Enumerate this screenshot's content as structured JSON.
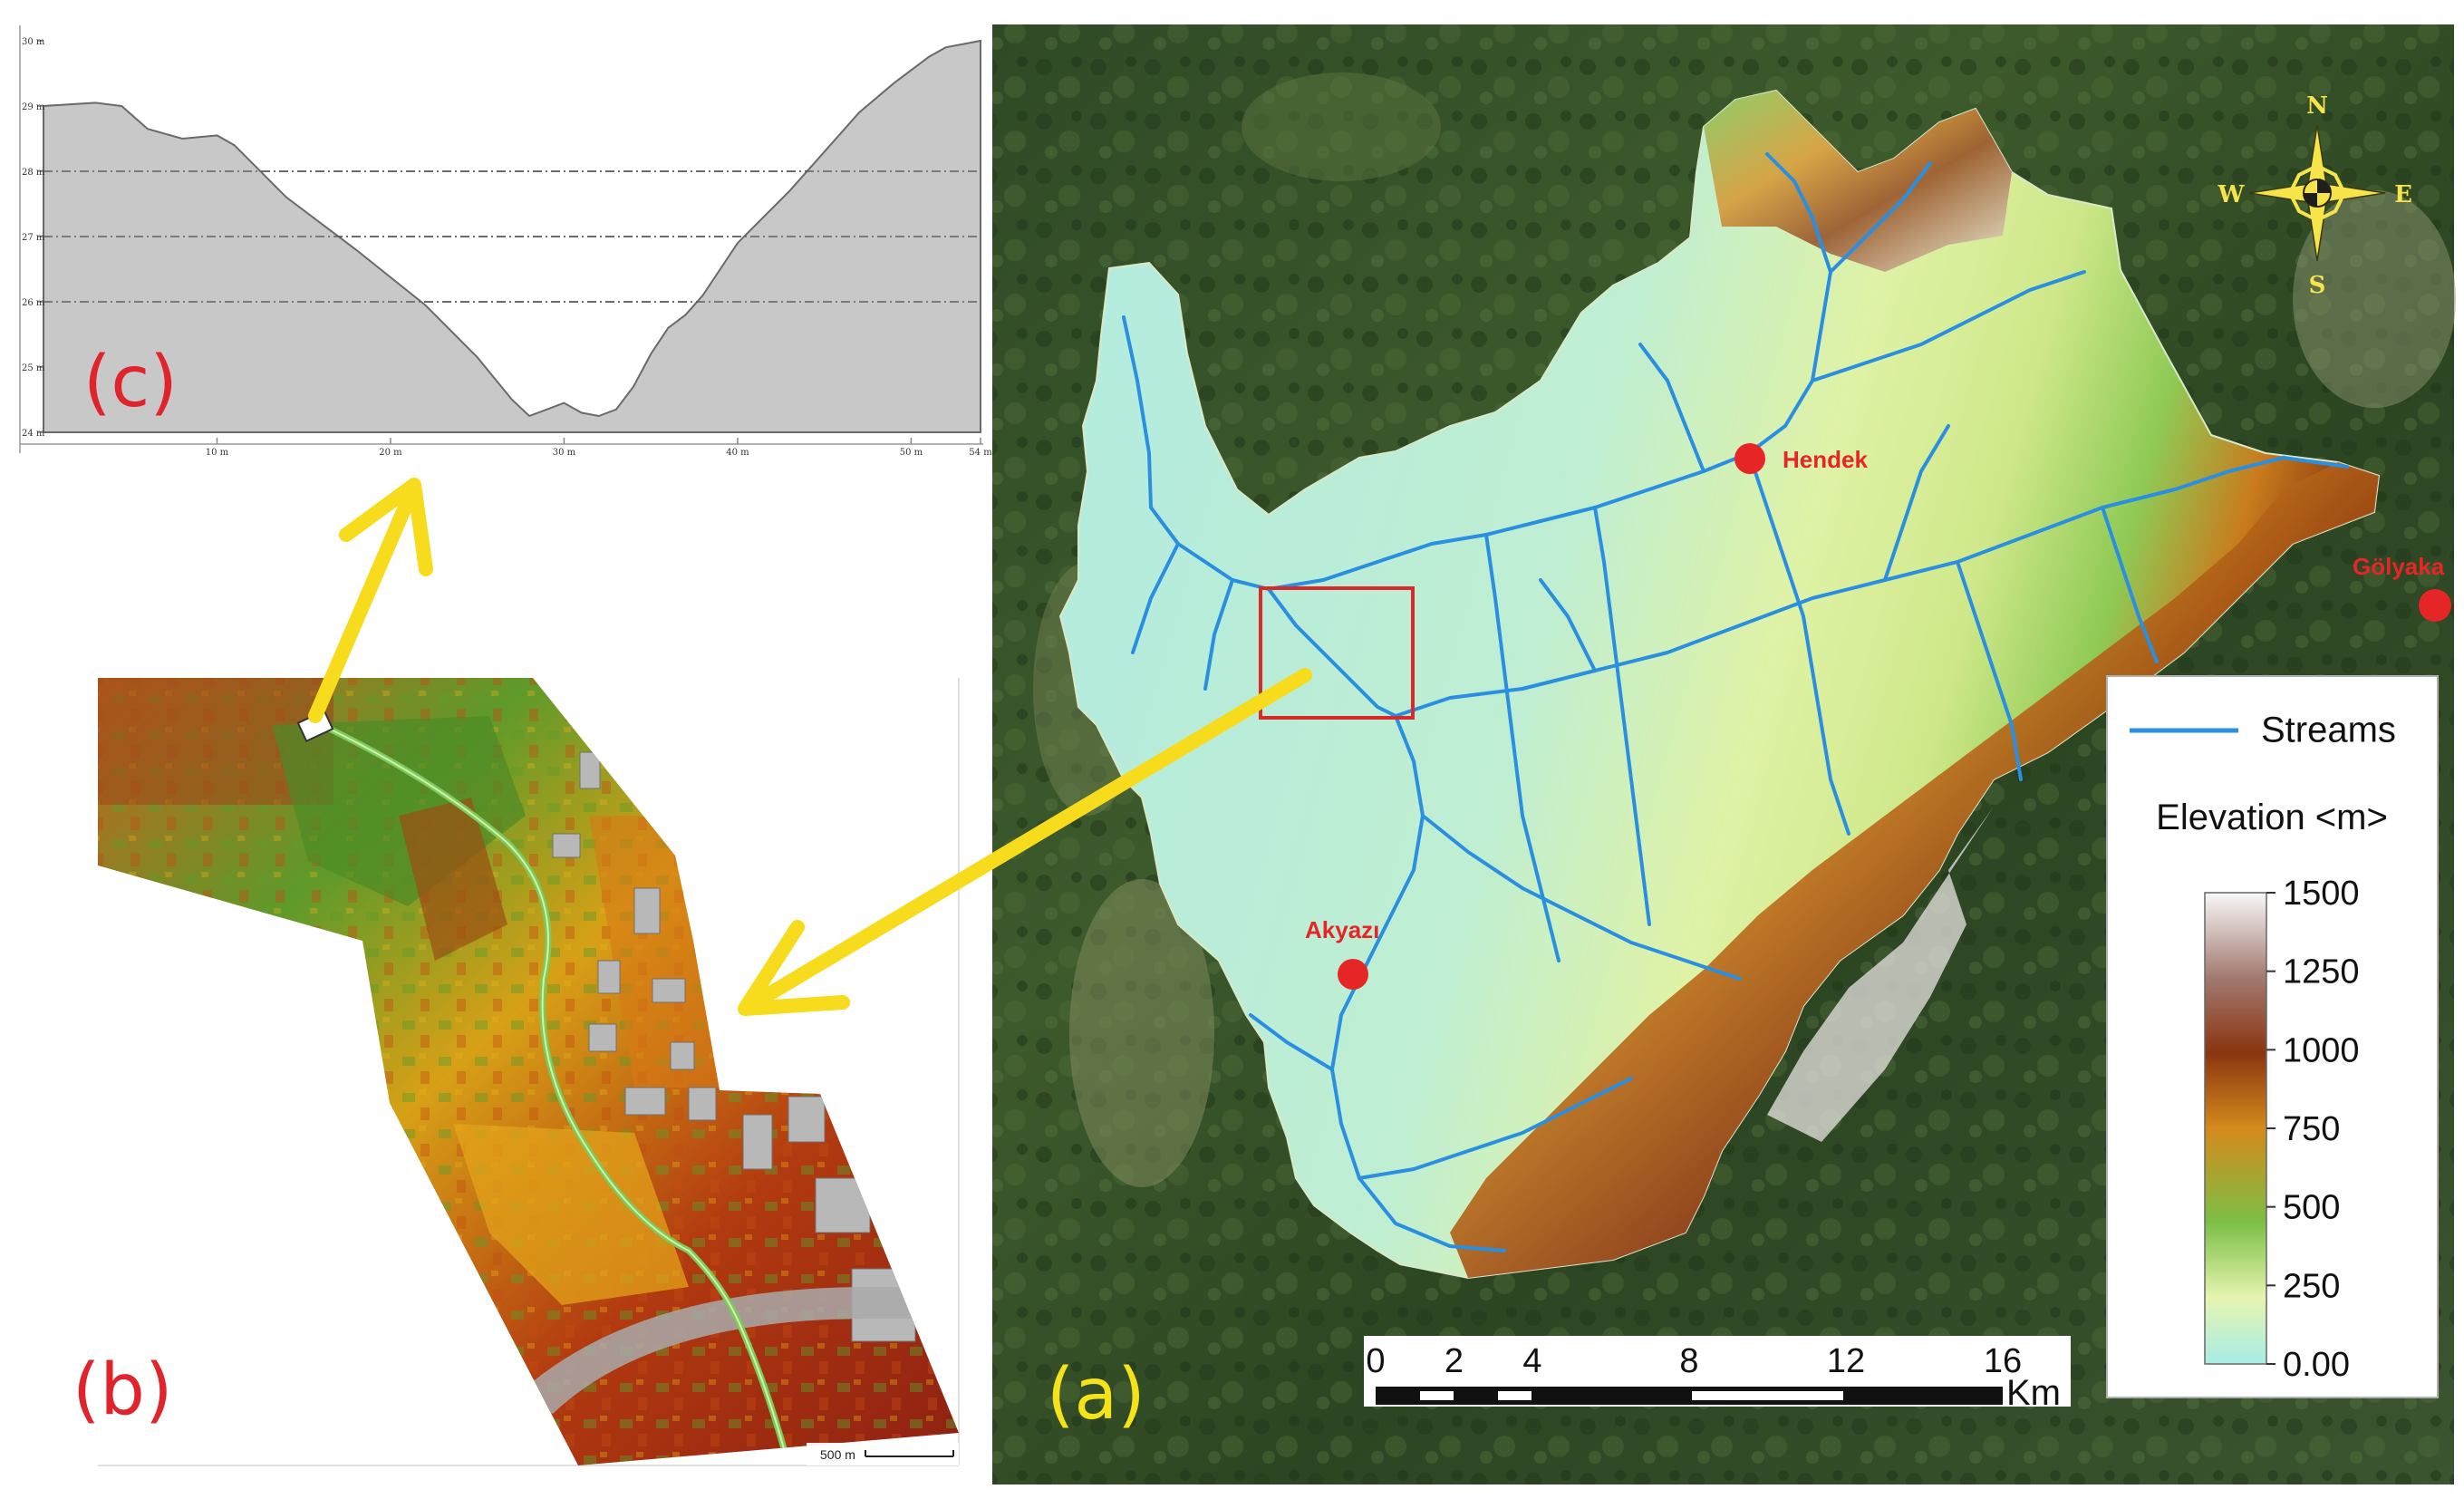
{
  "panels": {
    "a": {
      "label": "(a)",
      "color": "#f4e21a"
    },
    "b": {
      "label": "(b)",
      "color": "#e0242b"
    },
    "c": {
      "label": "(c)",
      "color": "#e0242b"
    }
  },
  "towns": [
    {
      "name": "Hendek"
    },
    {
      "name": "Akyazı"
    },
    {
      "name": "Gölyaka"
    }
  ],
  "compass": {
    "n": "N",
    "s": "S",
    "e": "E",
    "w": "W"
  },
  "legend": {
    "streams_label": "Streams",
    "stream_color": "#2a8fe0",
    "elevation_title": "Elevation <m>",
    "ticks": [
      "1500",
      "1250",
      "1000",
      "750",
      "500",
      "250",
      "0.00"
    ]
  },
  "scalebar": {
    "ticks": [
      "0",
      "2",
      "4",
      "8",
      "12",
      "16"
    ],
    "unit": "Km"
  },
  "detail_scalebar": {
    "label": "500 m"
  },
  "profile": {
    "y_ticks": [
      "30 m",
      "29 m",
      "28 m",
      "27 m",
      "26 m",
      "25 m",
      "24 m"
    ],
    "x_ticks": [
      "10 m",
      "20 m",
      "30 m",
      "40 m",
      "50 m",
      "54 m"
    ],
    "points": [
      [
        0,
        29.0
      ],
      [
        3,
        29.05
      ],
      [
        4.5,
        29.0
      ],
      [
        6,
        28.65
      ],
      [
        8,
        28.5
      ],
      [
        10,
        28.55
      ],
      [
        11,
        28.4
      ],
      [
        14,
        27.6
      ],
      [
        18,
        26.8
      ],
      [
        22,
        25.95
      ],
      [
        25,
        25.15
      ],
      [
        27,
        24.5
      ],
      [
        28,
        24.25
      ],
      [
        29,
        24.35
      ],
      [
        30,
        24.45
      ],
      [
        31,
        24.3
      ],
      [
        32,
        24.25
      ],
      [
        33,
        24.35
      ],
      [
        34,
        24.7
      ],
      [
        35,
        25.2
      ],
      [
        36,
        25.6
      ],
      [
        37,
        25.8
      ],
      [
        38,
        26.1
      ],
      [
        40,
        26.9
      ],
      [
        43,
        27.7
      ],
      [
        45,
        28.3
      ],
      [
        47,
        28.9
      ],
      [
        49,
        29.35
      ],
      [
        51,
        29.75
      ],
      [
        52,
        29.9
      ],
      [
        53,
        29.95
      ],
      [
        54,
        30.0
      ]
    ],
    "fill_color": "#c8c8c8"
  },
  "arrow_color": "#f6dc1c"
}
